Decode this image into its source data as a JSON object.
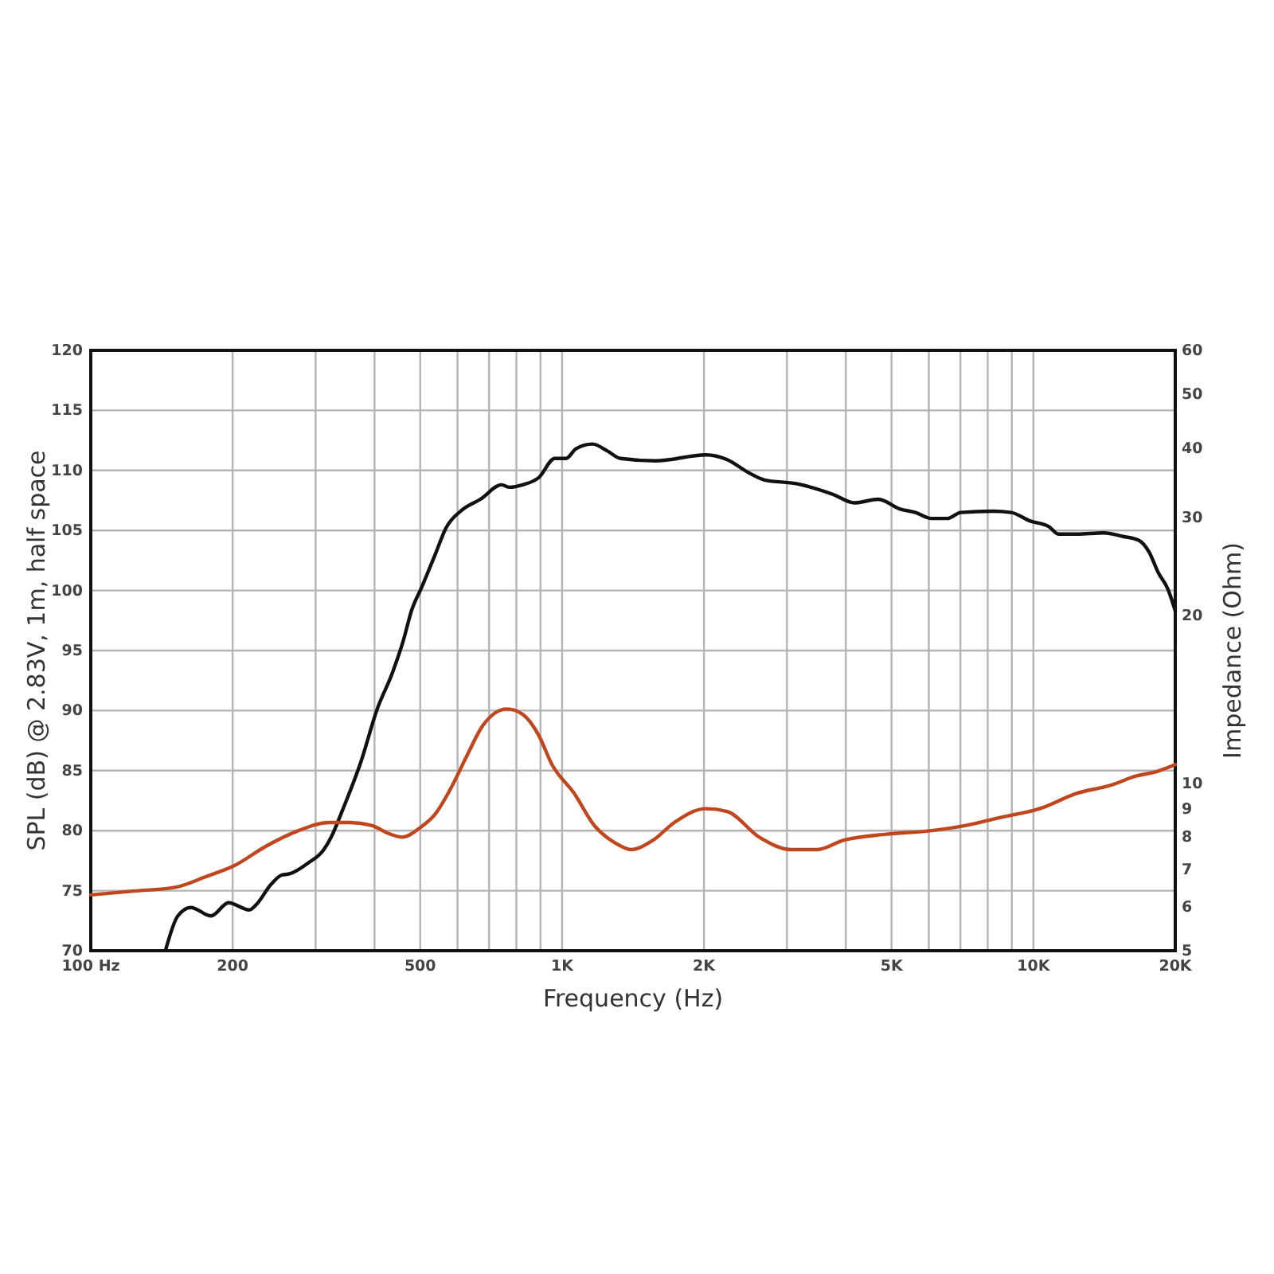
{
  "chart_data": [
    {
      "type": "line",
      "xlabel": "Frequency (Hz)",
      "ylabel": "SPL (dB) @ 2.83V, 1m, half space",
      "log": "x",
      "grid": true,
      "xlim": [
        100,
        20000
      ],
      "xticks": [
        {
          "value": 100,
          "label": "100 Hz"
        },
        200,
        {
          "value": 300,
          "label": null
        },
        {
          "value": 400,
          "label": null
        },
        500,
        {
          "value": 600,
          "label": null
        },
        {
          "value": 700,
          "label": null
        },
        {
          "value": 800,
          "label": null
        },
        {
          "value": 900,
          "label": null
        },
        {
          "value": 1000,
          "label": "1K"
        },
        {
          "value": 2000,
          "label": "2K"
        },
        {
          "value": 3000,
          "label": null
        },
        {
          "value": 4000,
          "label": null
        },
        {
          "value": 5000,
          "label": "5K"
        },
        {
          "value": 6000,
          "label": null
        },
        {
          "value": 7000,
          "label": null
        },
        {
          "value": 8000,
          "label": null
        },
        {
          "value": 9000,
          "label": null
        },
        {
          "value": 10000,
          "label": "10K"
        },
        {
          "value": 20000,
          "label": "20K"
        }
      ],
      "ylim": [
        70,
        120
      ],
      "yticks": [
        70,
        75,
        80,
        85,
        90,
        95,
        100,
        105,
        110,
        115,
        120
      ],
      "series": [
        {
          "color": "#111111",
          "x": [
            144,
            153,
            163,
            180,
            196,
            217,
            224,
            241,
            254,
            264,
            289,
            312,
            324,
            342,
            374,
            405,
            437,
            461,
            479,
            504,
            538,
            567,
            613,
            671,
            744,
            774,
            825,
            892,
            965,
            1020,
            1070,
            1160,
            1250,
            1330,
            1580,
            2020,
            2240,
            2490,
            2690,
            3140,
            3760,
            4170,
            4690,
            5200,
            5620,
            6080,
            6570,
            7010,
            8190,
            8970,
            9820,
            10800,
            11300,
            12400,
            14100,
            15500,
            16700,
            17600,
            18400,
            19300,
            20000
          ],
          "values": [
            70.0,
            72.9,
            73.6,
            72.9,
            74.0,
            73.4,
            73.8,
            75.5,
            76.3,
            76.4,
            77.3,
            78.4,
            79.5,
            81.7,
            85.7,
            90.1,
            93.2,
            95.9,
            98.3,
            100.3,
            103.0,
            105.2,
            106.7,
            107.6,
            108.8,
            108.6,
            108.8,
            109.4,
            111.0,
            111.0,
            111.8,
            112.2,
            111.6,
            111.0,
            110.8,
            111.3,
            110.9,
            109.8,
            109.2,
            108.9,
            108.0,
            107.3,
            107.6,
            106.8,
            106.5,
            106.0,
            106.0,
            106.5,
            106.6,
            106.5,
            105.8,
            105.3,
            104.7,
            104.7,
            104.8,
            104.5,
            104.2,
            103.2,
            101.5,
            100.1,
            98.3
          ]
        }
      ]
    },
    {
      "type": "line",
      "ylabel": "Impedance (Ohm)",
      "log": "xy",
      "tick_labels": "y",
      "xlim": [
        100,
        20000
      ],
      "ylim": [
        5,
        60
      ],
      "yticks": [
        5,
        6,
        7,
        8,
        9,
        10,
        20,
        30,
        40,
        50,
        60
      ],
      "series": [
        {
          "color": "#c0461e",
          "x": [
            100,
            123,
            151,
            176,
            201,
            235,
            274,
            320,
            355,
            394,
            432,
            458,
            498,
            538,
            581,
            628,
            679,
            764,
            825,
            892,
            952,
            1060,
            1170,
            1300,
            1400,
            1560,
            1730,
            2020,
            2240,
            2620,
            3060,
            3480,
            3960,
            4880,
            5920,
            7200,
            8630,
            10300,
            12400,
            14500,
            16500,
            18300,
            20000
          ],
          "values": [
            6.3,
            6.4,
            6.5,
            6.8,
            7.1,
            7.7,
            8.2,
            8.5,
            8.5,
            8.4,
            8.1,
            8.0,
            8.3,
            8.8,
            9.8,
            11.2,
            12.7,
            13.6,
            13.3,
            12.2,
            10.8,
            9.6,
            8.4,
            7.8,
            7.6,
            7.9,
            8.5,
            9.0,
            8.9,
            8.0,
            7.6,
            7.6,
            7.9,
            8.1,
            8.2,
            8.4,
            8.7,
            9.0,
            9.6,
            9.9,
            10.3,
            10.5,
            10.8
          ]
        }
      ]
    }
  ]
}
